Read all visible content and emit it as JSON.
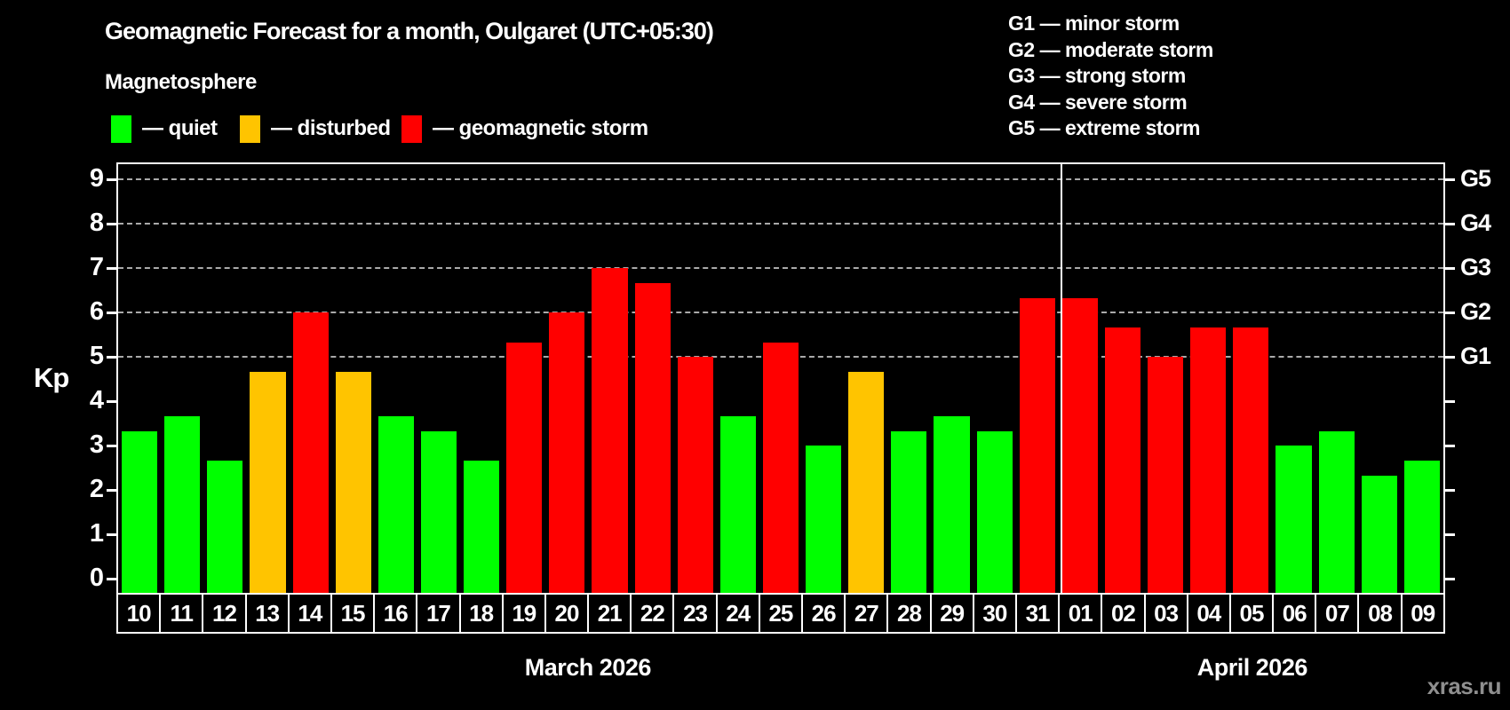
{
  "title": "Geomagnetic Forecast for a month, Oulgaret (UTC+05:30)",
  "subtitle": "Magnetosphere",
  "legend": {
    "quiet_label": "— quiet",
    "disturbed_label": "— disturbed",
    "storm_label": "— geomagnetic storm"
  },
  "g_legend": [
    "G1 — minor storm",
    "G2 — moderate storm",
    "G3 — strong storm",
    "G4 — severe storm",
    "G5 — extreme storm"
  ],
  "watermark": "xras.ru",
  "chart_data": {
    "type": "bar",
    "title": "Geomagnetic Forecast for a month, Oulgaret (UTC+05:30)",
    "subtitle": "Magnetosphere",
    "ylabel": "Kp",
    "ylim": [
      0,
      9
    ],
    "y_ticks": [
      0,
      1,
      2,
      3,
      4,
      5,
      6,
      7,
      8,
      9
    ],
    "grid_levels": [
      5,
      6,
      7,
      8,
      9
    ],
    "grid_on": true,
    "legend_position": "top",
    "right_axis_labels": [
      {
        "kp": 5,
        "label": "G1"
      },
      {
        "kp": 6,
        "label": "G2"
      },
      {
        "kp": 7,
        "label": "G3"
      },
      {
        "kp": 8,
        "label": "G4"
      },
      {
        "kp": 9,
        "label": "G5"
      }
    ],
    "colors": {
      "quiet": "#00ff00",
      "disturbed": "#ffc400",
      "storm": "#ff0000",
      "axis": "#ffffff",
      "grid": "#aaaaaa",
      "background": "#000000"
    },
    "status_thresholds": {
      "disturbed_min_kp": 4,
      "storm_min_kp": 5
    },
    "months": [
      {
        "label": "March 2026",
        "days": [
          {
            "day": "10",
            "kp": 3.33
          },
          {
            "day": "11",
            "kp": 3.67
          },
          {
            "day": "12",
            "kp": 2.67
          },
          {
            "day": "13",
            "kp": 4.67
          },
          {
            "day": "14",
            "kp": 6.0
          },
          {
            "day": "15",
            "kp": 4.67
          },
          {
            "day": "16",
            "kp": 3.67
          },
          {
            "day": "17",
            "kp": 3.33
          },
          {
            "day": "18",
            "kp": 2.67
          },
          {
            "day": "19",
            "kp": 5.33
          },
          {
            "day": "20",
            "kp": 6.0
          },
          {
            "day": "21",
            "kp": 7.0
          },
          {
            "day": "22",
            "kp": 6.67
          },
          {
            "day": "23",
            "kp": 5.0
          },
          {
            "day": "24",
            "kp": 3.67
          },
          {
            "day": "25",
            "kp": 5.33
          },
          {
            "day": "26",
            "kp": 3.0
          },
          {
            "day": "27",
            "kp": 4.67
          },
          {
            "day": "28",
            "kp": 3.33
          },
          {
            "day": "29",
            "kp": 3.67
          },
          {
            "day": "30",
            "kp": 3.33
          },
          {
            "day": "31",
            "kp": 6.33
          }
        ]
      },
      {
        "label": "April 2026",
        "days": [
          {
            "day": "01",
            "kp": 6.33
          },
          {
            "day": "02",
            "kp": 5.67
          },
          {
            "day": "03",
            "kp": 5.0
          },
          {
            "day": "04",
            "kp": 5.67
          },
          {
            "day": "05",
            "kp": 5.67
          },
          {
            "day": "06",
            "kp": 3.0
          },
          {
            "day": "07",
            "kp": 3.33
          },
          {
            "day": "08",
            "kp": 2.33
          },
          {
            "day": "09",
            "kp": 2.67
          }
        ]
      }
    ]
  }
}
